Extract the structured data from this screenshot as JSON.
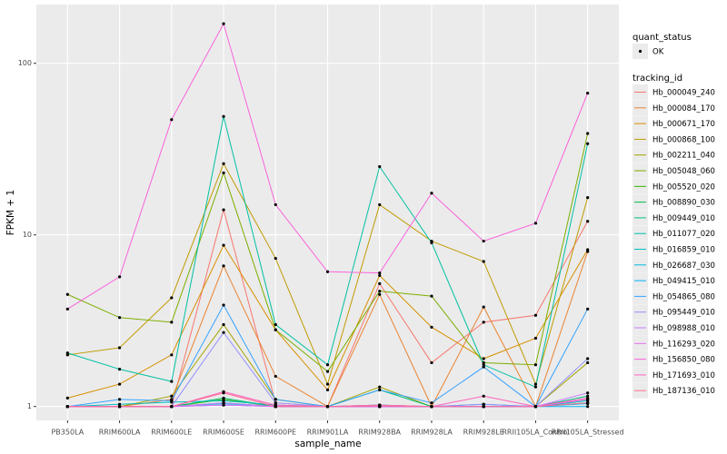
{
  "chart_data": {
    "type": "line",
    "log_scale": true,
    "grid": true,
    "x_label": "sample_name",
    "y_label": "FPKM + 1",
    "categories": [
      "PB350LA",
      "RRIM600LA",
      "RRIM600LE",
      "RRIM600SE",
      "RRIM600PE",
      "RRIM901LA",
      "RRIM928BA",
      "RRIM928LA",
      "RRIM928LE",
      "RRII105LA_Control",
      "RRII105LA_Stressed"
    ],
    "ylim": [
      0.83,
      220
    ],
    "yticks": [
      1,
      10,
      100
    ],
    "point_legend_title": "quant_status",
    "point_legend_label": "OK",
    "point_color": "#000000",
    "legend_title": "tracking_id",
    "legend_position": "right",
    "series": [
      {
        "name": "Hb_000049_240",
        "color": "#F8766D",
        "values": [
          1,
          1,
          1,
          14,
          1.05,
          1,
          5.2,
          1.8,
          3.1,
          3.4,
          12
        ]
      },
      {
        "name": "Hb_000084_170",
        "color": "#EA8331",
        "values": [
          1,
          1,
          1.1,
          6.6,
          1.5,
          1,
          4.5,
          1,
          3.8,
          1,
          8
        ]
      },
      {
        "name": "Hb_000671_170",
        "color": "#D89000",
        "values": [
          1.12,
          1.35,
          2.0,
          8.7,
          2.8,
          1.25,
          5.8,
          2.9,
          1.9,
          2.5,
          8.2
        ]
      },
      {
        "name": "Hb_000868_100",
        "color": "#C09B00",
        "values": [
          2.0,
          2.2,
          4.3,
          26,
          7.3,
          1.35,
          15,
          9.2,
          7,
          1.35,
          16.5
        ]
      },
      {
        "name": "Hb_002211_040",
        "color": "#A3A500",
        "values": [
          1,
          1,
          1.15,
          3.0,
          1.1,
          1,
          1.3,
          1,
          1,
          1,
          1.8
        ]
      },
      {
        "name": "Hb_005048_060",
        "color": "#7CAE00",
        "values": [
          4.5,
          3.3,
          3.1,
          23,
          2.8,
          1.6,
          4.7,
          4.4,
          1.8,
          1.75,
          39
        ]
      },
      {
        "name": "Hb_005520_020",
        "color": "#39B600",
        "values": [
          1,
          1,
          1,
          1.1,
          1,
          1,
          1,
          1,
          1,
          1,
          1.1
        ]
      },
      {
        "name": "Hb_008890_030",
        "color": "#00BB4E",
        "values": [
          1,
          1,
          1,
          1.05,
          1,
          1,
          1,
          1,
          1,
          1,
          1.05
        ]
      },
      {
        "name": "Hb_009449_010",
        "color": "#00BF7D",
        "values": [
          1,
          1,
          1,
          1.12,
          1,
          1,
          1.25,
          1,
          1,
          1,
          1.15
        ]
      },
      {
        "name": "Hb_011077_020",
        "color": "#00C1A3",
        "values": [
          2.05,
          1.65,
          1.4,
          49,
          3.0,
          1.75,
          25,
          9,
          1.75,
          1.3,
          34
        ]
      },
      {
        "name": "Hb_016859_010",
        "color": "#00BFC4",
        "values": [
          1,
          1.03,
          1.06,
          1.08,
          1.02,
          1,
          1.02,
          1,
          1.03,
          1,
          1.08
        ]
      },
      {
        "name": "Hb_026687_030",
        "color": "#00BAE0",
        "values": [
          1,
          1,
          1,
          1.04,
          1,
          1,
          1,
          1,
          1,
          1,
          1.04
        ]
      },
      {
        "name": "Hb_049415_010",
        "color": "#00B0F6",
        "values": [
          1,
          1,
          1,
          1.02,
          1,
          1,
          1,
          1,
          1,
          1,
          1
        ]
      },
      {
        "name": "Hb_054865_080",
        "color": "#35A2FF",
        "values": [
          1,
          1.1,
          1.08,
          3.9,
          1.1,
          1.0,
          1.25,
          1.05,
          1.7,
          1.0,
          3.7
        ]
      },
      {
        "name": "Hb_095449_010",
        "color": "#9590FF",
        "values": [
          1,
          1,
          1,
          2.7,
          1.05,
          1,
          1.02,
          1,
          1.03,
          1,
          1.9
        ]
      },
      {
        "name": "Hb_098988_010",
        "color": "#C77CFF",
        "values": [
          1,
          1,
          1,
          1.05,
          1,
          1,
          1,
          1,
          1,
          1,
          1.2
        ]
      },
      {
        "name": "Hb_116293_020",
        "color": "#E76BF3",
        "values": [
          1,
          1,
          1,
          1.02,
          1,
          1,
          1,
          1,
          1,
          1,
          1.1
        ]
      },
      {
        "name": "Hb_156850_080",
        "color": "#FA62DB",
        "values": [
          3.7,
          5.7,
          47,
          170,
          15,
          6.1,
          6,
          17.5,
          9.2,
          11.7,
          67
        ]
      },
      {
        "name": "Hb_171693_010",
        "color": "#FF62BC",
        "values": [
          1,
          1,
          1,
          1.22,
          1.02,
          1,
          1,
          1,
          1.15,
          1,
          1.12
        ]
      },
      {
        "name": "Hb_187136_010",
        "color": "#FF6C91",
        "values": [
          1,
          1,
          1,
          1.2,
          1,
          1,
          1.02,
          1,
          1,
          1,
          1.05
        ]
      }
    ]
  }
}
